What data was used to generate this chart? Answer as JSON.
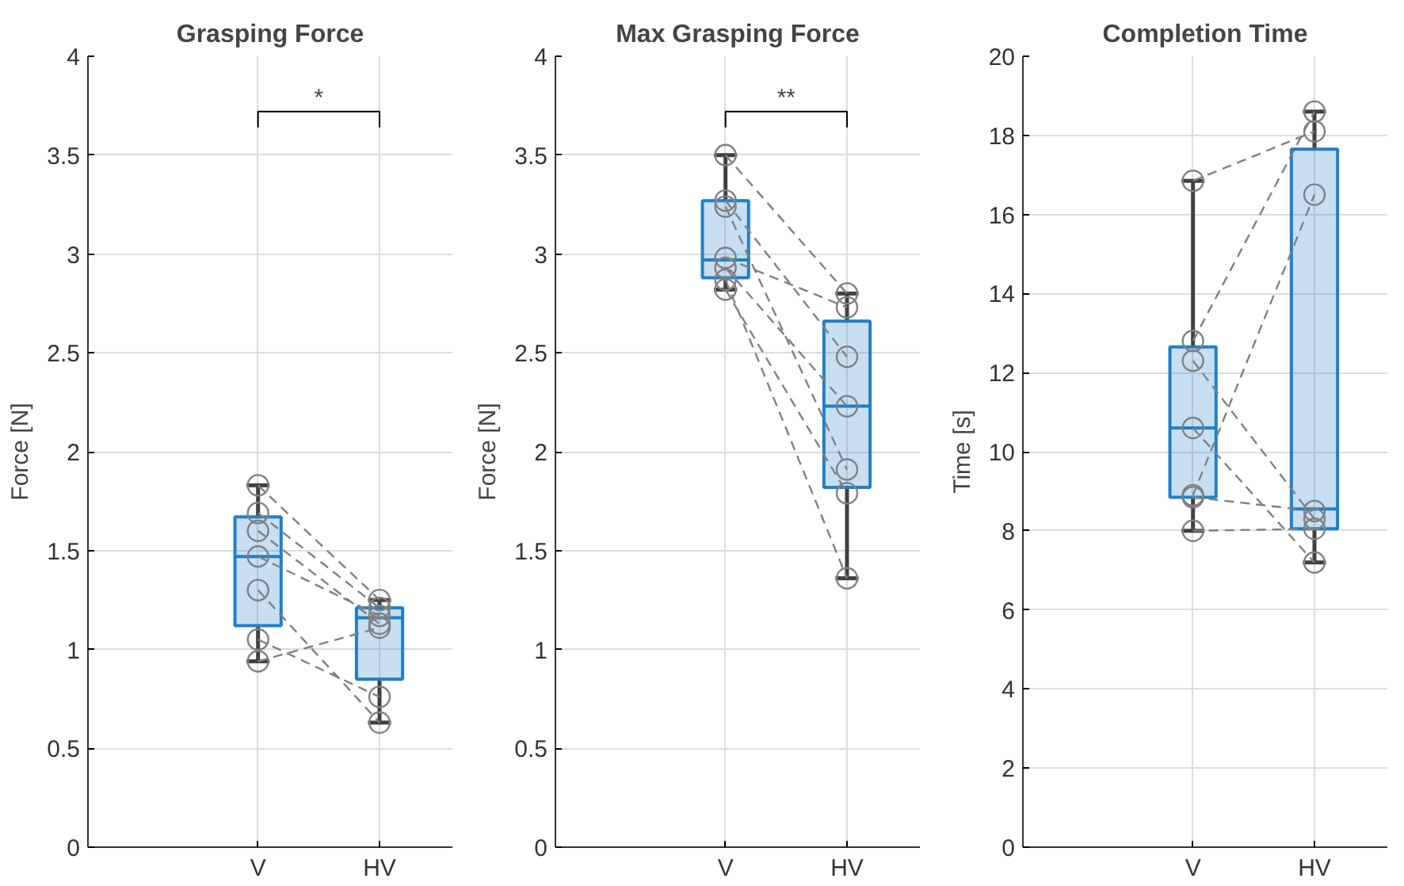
{
  "chart_data": [
    {
      "type": "box",
      "title": "Grasping Force",
      "ylabel": "Force [N]",
      "categories": [
        "V",
        "HV"
      ],
      "ylim": [
        0,
        4
      ],
      "yticks": [
        0,
        0.5,
        1,
        1.5,
        2,
        2.5,
        3,
        3.5,
        4
      ],
      "grid": true,
      "annotations": [
        "*"
      ],
      "marker": "circle",
      "line_style": "dashed",
      "series": [
        {
          "color": "#1f80c8",
          "boxes": [
            {
              "low": 0.94,
              "q1": 1.12,
              "median": 1.47,
              "q3": 1.67,
              "high": 1.83
            },
            {
              "low": 0.63,
              "q1": 0.85,
              "median": 1.16,
              "q3": 1.21,
              "high": 1.25
            }
          ]
        },
        {
          "type": "line",
          "color": "#808080",
          "values": [
            1.83,
            1.25
          ]
        },
        {
          "type": "line",
          "color": "#808080",
          "values": [
            1.69,
            1.21
          ]
        },
        {
          "type": "line",
          "color": "#808080",
          "values": [
            1.6,
            1.13
          ]
        },
        {
          "type": "line",
          "color": "#808080",
          "values": [
            1.47,
            1.17
          ]
        },
        {
          "type": "line",
          "color": "#808080",
          "values": [
            1.3,
            0.63
          ]
        },
        {
          "type": "line",
          "color": "#808080",
          "values": [
            1.05,
            0.76
          ]
        },
        {
          "type": "line",
          "color": "#808080",
          "values": [
            0.94,
            1.11
          ]
        }
      ]
    },
    {
      "type": "box",
      "title": "Max Grasping Force",
      "ylabel": "Force [N]",
      "categories": [
        "V",
        "HV"
      ],
      "ylim": [
        0,
        4
      ],
      "yticks": [
        0,
        0.5,
        1,
        1.5,
        2,
        2.5,
        3,
        3.5,
        4
      ],
      "grid": true,
      "annotations": [
        "**"
      ],
      "marker": "circle",
      "line_style": "dashed",
      "series": [
        {
          "color": "#1f80c8",
          "boxes": [
            {
              "low": 2.82,
              "q1": 2.88,
              "median": 2.97,
              "q3": 3.27,
              "high": 3.5
            },
            {
              "low": 1.36,
              "q1": 1.82,
              "median": 2.23,
              "q3": 2.66,
              "high": 2.8
            }
          ]
        },
        {
          "type": "line",
          "color": "#808080",
          "values": [
            3.5,
            2.8
          ]
        },
        {
          "type": "line",
          "color": "#808080",
          "values": [
            3.27,
            2.48
          ]
        },
        {
          "type": "line",
          "color": "#808080",
          "values": [
            3.24,
            1.91
          ]
        },
        {
          "type": "line",
          "color": "#808080",
          "values": [
            2.98,
            2.73
          ]
        },
        {
          "type": "line",
          "color": "#808080",
          "values": [
            2.93,
            2.23
          ]
        },
        {
          "type": "line",
          "color": "#808080",
          "values": [
            2.87,
            1.36
          ]
        },
        {
          "type": "line",
          "color": "#808080",
          "values": [
            2.82,
            1.79
          ]
        }
      ]
    },
    {
      "type": "box",
      "title": "Completion Time",
      "ylabel": "Time [s]",
      "categories": [
        "V",
        "HV"
      ],
      "ylim": [
        0,
        20
      ],
      "yticks": [
        0,
        2,
        4,
        6,
        8,
        10,
        12,
        14,
        16,
        18,
        20
      ],
      "grid": true,
      "marker": "circle",
      "line_style": "dashed",
      "series": [
        {
          "color": "#1f80c8",
          "boxes": [
            {
              "low": 8.0,
              "q1": 8.85,
              "median": 10.6,
              "q3": 12.65,
              "high": 16.85
            },
            {
              "low": 7.2,
              "q1": 8.05,
              "median": 8.55,
              "q3": 17.65,
              "high": 18.6
            }
          ]
        },
        {
          "type": "line",
          "color": "#808080",
          "values": [
            16.85,
            18.1
          ]
        },
        {
          "type": "line",
          "color": "#808080",
          "values": [
            12.8,
            18.6
          ]
        },
        {
          "type": "line",
          "color": "#808080",
          "values": [
            12.3,
            8.3
          ]
        },
        {
          "type": "line",
          "color": "#808080",
          "values": [
            10.6,
            7.2
          ]
        },
        {
          "type": "line",
          "color": "#808080",
          "values": [
            8.9,
            16.5
          ]
        },
        {
          "type": "line",
          "color": "#808080",
          "values": [
            8.85,
            8.5
          ]
        },
        {
          "type": "line",
          "color": "#808080",
          "values": [
            8.0,
            8.05
          ]
        }
      ]
    }
  ]
}
